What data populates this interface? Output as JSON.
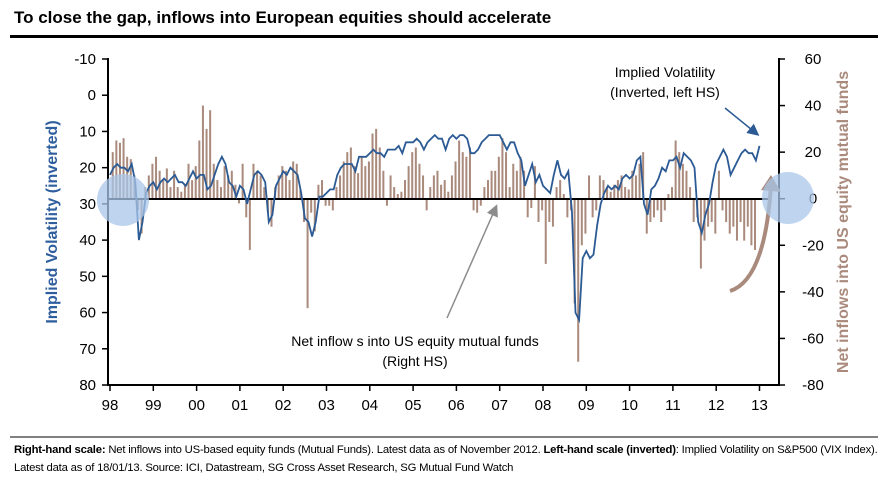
{
  "title": "To close the gap, inflows into European equities should accelerate",
  "footer": {
    "rhs_label": "Right-hand scale:",
    "rhs_text": " Net inflows into US-based equity funds (Mutual Funds). Latest data as of November 2012. ",
    "lhs_label": "Left-hand scale (inverted)",
    "lhs_text": ": Implied Volatility on S&P500 (VIX Index). Latest data as of 18/01/13. Source:  ICI, Datastream, SG Cross Asset Research, SG Mutual Fund Watch"
  },
  "colors": {
    "vix": "#2b5a94",
    "flows": "#a98a7c",
    "highlight": "#a9c6e8",
    "arrow_gray": "#8c8c8c"
  },
  "chart_data": {
    "type": "bar+line",
    "title": "To close the gap, inflows into European equities should accelerate",
    "xlabel": "",
    "ylabel_left": "Implied Volatility (inverted)",
    "ylabel_right": "Net inflows into US equity mutual funds",
    "x_ticks": [
      "98",
      "99",
      "00",
      "01",
      "02",
      "03",
      "04",
      "05",
      "06",
      "07",
      "08",
      "09",
      "10",
      "11",
      "12",
      "13"
    ],
    "y_left_ticks": [
      "-10",
      "0",
      "10",
      "20",
      "30",
      "40",
      "50",
      "60",
      "70",
      "80"
    ],
    "y_right_ticks": [
      "60",
      "40",
      "20",
      "0",
      "-20",
      "-40",
      "-60",
      "-80"
    ],
    "ylim_left": [
      -10,
      80
    ],
    "left_inverted": true,
    "ylim_right": [
      -80,
      60
    ],
    "xlim": [
      1998,
      2013.4
    ],
    "annotations": {
      "vix_label_1": "Implied Volatility",
      "vix_label_2": "(Inverted, left HS)",
      "flows_label_1": "Net inflow s into US equity mutual funds",
      "flows_label_2": "(Right HS)"
    },
    "series": [
      {
        "name": "Implied Volatility (VIX, inverted, left HS)",
        "type": "line",
        "start": 1998.0,
        "freq": "monthly",
        "values": [
          22,
          20,
          19,
          20,
          20,
          21,
          19,
          24,
          40,
          35,
          27,
          25,
          24,
          26,
          24,
          23,
          24,
          23,
          22,
          24,
          24,
          25,
          23,
          21,
          23,
          22,
          22,
          26,
          25,
          22,
          19,
          17,
          19,
          24,
          25,
          28,
          25,
          26,
          30,
          26,
          22,
          21,
          22,
          24,
          35,
          33,
          25,
          23,
          21,
          22,
          20,
          21,
          22,
          27,
          34,
          35,
          39,
          35,
          28,
          28,
          27,
          26,
          26,
          22,
          20,
          19,
          19,
          19,
          21,
          17,
          17,
          17,
          16,
          15,
          16,
          16,
          17,
          15,
          15,
          15,
          14,
          16,
          13,
          13,
          13,
          12,
          13,
          15,
          13,
          12,
          11,
          12,
          12,
          15,
          12,
          11,
          12,
          11,
          11,
          12,
          16,
          16,
          15,
          13,
          12,
          11,
          11,
          11,
          11,
          13,
          15,
          13,
          13,
          16,
          18,
          25,
          22,
          19,
          24,
          22,
          25,
          26,
          27,
          22,
          18,
          22,
          23,
          21,
          32,
          60,
          62,
          45,
          43,
          45,
          44,
          36,
          30,
          27,
          25,
          26,
          25,
          26,
          23,
          22,
          23,
          22,
          18,
          17,
          30,
          33,
          26,
          25,
          23,
          20,
          21,
          18,
          18,
          17,
          20,
          16,
          17,
          18,
          20,
          35,
          38,
          33,
          30,
          24,
          19,
          17,
          15,
          17,
          22,
          20,
          18,
          16,
          15,
          16,
          16,
          18,
          14
        ]
      },
      {
        "name": "Net inflows into US equity mutual funds (right HS)",
        "type": "bar",
        "start": 1998.0,
        "freq": "monthly",
        "values": [
          20,
          25,
          24,
          26,
          18,
          17,
          10,
          -5,
          -15,
          5,
          10,
          15,
          18,
          12,
          8,
          13,
          5,
          12,
          5,
          3,
          6,
          15,
          8,
          14,
          25,
          40,
          30,
          38,
          15,
          8,
          5,
          14,
          10,
          12,
          6,
          -2,
          15,
          -8,
          -22,
          15,
          12,
          10,
          5,
          -6,
          -12,
          5,
          10,
          14,
          12,
          8,
          16,
          15,
          4,
          -10,
          -47,
          -6,
          -14,
          6,
          8,
          -3,
          -3,
          -5,
          5,
          10,
          16,
          20,
          22,
          14,
          11,
          18,
          14,
          16,
          28,
          30,
          22,
          12,
          -3,
          10,
          5,
          2,
          3,
          8,
          14,
          20,
          22,
          15,
          10,
          -5,
          5,
          10,
          12,
          6,
          8,
          3,
          10,
          16,
          25,
          20,
          18,
          22,
          -5,
          -6,
          -3,
          5,
          8,
          12,
          12,
          18,
          26,
          20,
          5,
          15,
          12,
          18,
          12,
          -8,
          -4,
          14,
          -10,
          -5,
          -28,
          -10,
          -12,
          5,
          8,
          2,
          -8,
          -5,
          -45,
          -70,
          -20,
          -15,
          10,
          -8,
          -5,
          10,
          8,
          5,
          3,
          6,
          8,
          10,
          5,
          4,
          12,
          10,
          15,
          20,
          -15,
          -10,
          -8,
          -5,
          -10,
          -5,
          2,
          5,
          25,
          20,
          15,
          12,
          5,
          -10,
          -8,
          -30,
          -18,
          -12,
          -10,
          -15,
          12,
          -5,
          -10,
          -15,
          -12,
          -18,
          -10,
          -18,
          -12,
          -20,
          -22
        ]
      }
    ]
  }
}
